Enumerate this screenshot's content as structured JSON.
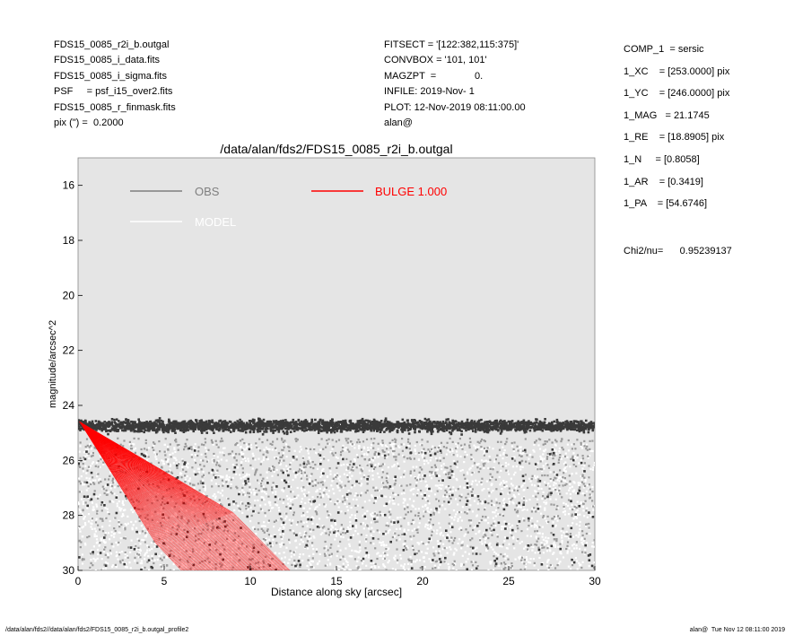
{
  "header_left": [
    "FDS15_0085_r2i_b.outgal",
    "FDS15_0085_i_data.fits",
    "FDS15_0085_i_sigma.fits",
    "PSF     = psf_i15_over2.fits",
    "FDS15_0085_r_finmask.fits",
    "pix (\") =  0.2000"
  ],
  "header_mid": [
    "FITSECT = '[122:382,115:375]'",
    "CONVBOX = '101, 101'",
    "MAGZPT  =              0.",
    "INFILE: 2019-Nov- 1",
    "PLOT: 12-Nov-2019 08:11:00.00",
    "alan@"
  ],
  "params": [
    "COMP_1  = sersic",
    "1_XC    = [253.0000] pix",
    "1_YC    = [246.0000] pix",
    "1_MAG   = 21.1745",
    "1_RE    = [18.8905] pix",
    "1_N     = [0.8058]",
    "1_AR    = [0.3419]",
    "1_PA    = [54.6746]"
  ],
  "chi2": "Chi2/nu=      0.95239137",
  "footer_left": "/data/alan/fds2//data/alan/fds2/FDS15_0085_r2i_b.outgal_profile2",
  "footer_right": "alan@  Tue Nov 12 08:11:00 2019",
  "chart_data": {
    "type": "scatter",
    "title": "/data/alan/fds2/FDS15_0085_r2i_b.outgal",
    "xlabel": "Distance along sky [arcsec]",
    "ylabel": "magnitude/arcsec^2",
    "xlim": [
      0,
      30
    ],
    "ylim": [
      30,
      15
    ],
    "y_inverted": true,
    "xticks": [
      0,
      5,
      10,
      15,
      20,
      25,
      30
    ],
    "yticks": [
      16,
      18,
      20,
      22,
      24,
      26,
      28,
      30
    ],
    "plot_background": "#e5e5e5",
    "grid": false,
    "legend": [
      {
        "label": "OBS",
        "color": "#7f7f7f",
        "text_color": "#7f7f7f"
      },
      {
        "label": "BULGE  1.000",
        "color": "#ff0000",
        "text_color": "#ff0000"
      },
      {
        "label": "MODEL",
        "color": "#ffffff",
        "text_color": "#ffffff"
      }
    ],
    "series": [
      {
        "name": "OBS",
        "kind": "scatter_cloud",
        "colors": [
          "#3a3a3a",
          "#9a9a9a",
          "#ffffff"
        ],
        "dense_band_mag": [
          24.0,
          25.4
        ],
        "sparse_region_mag": [
          25.4,
          30
        ],
        "x_range": [
          0,
          30
        ]
      },
      {
        "name": "BULGE  1.000",
        "kind": "model_fan",
        "color": "#ff0000",
        "apex": {
          "x": 0.1,
          "y": 24.6
        },
        "upper_edge": [
          [
            0.1,
            24.6
          ],
          [
            5.0,
            26.4
          ],
          [
            9.0,
            27.9
          ],
          [
            12.3,
            30.0
          ]
        ],
        "lower_edge": [
          [
            0.1,
            24.6
          ],
          [
            2.5,
            27.0
          ],
          [
            4.5,
            29.0
          ],
          [
            6.0,
            30.0
          ]
        ]
      }
    ]
  }
}
